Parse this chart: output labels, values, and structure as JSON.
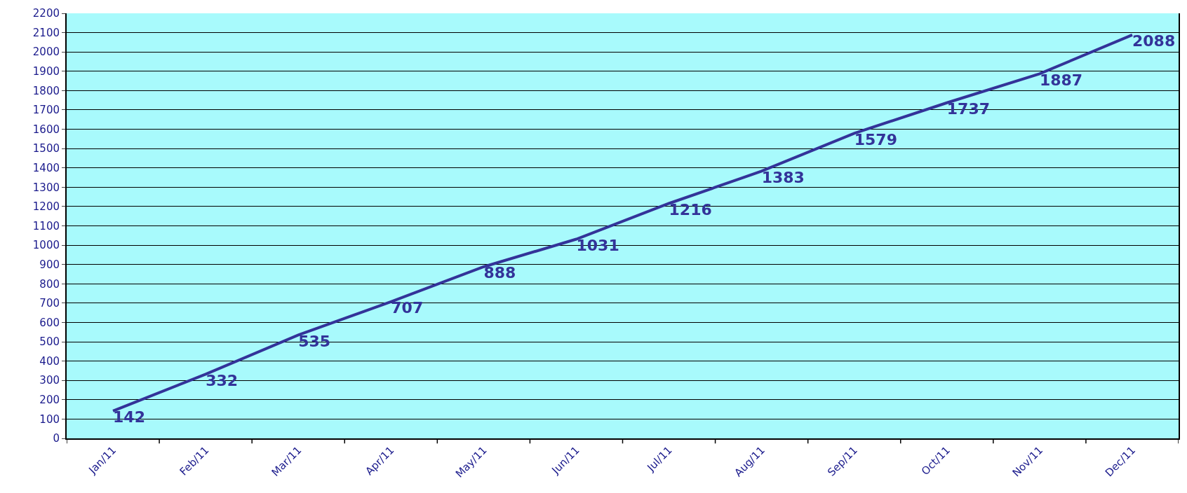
{
  "chart_data": {
    "type": "line",
    "categories": [
      "Jan/11",
      "Feb/11",
      "Mar/11",
      "Apr/11",
      "May/11",
      "Jun/11",
      "Jul/11",
      "Aug/11",
      "Sep/11",
      "Oct/11",
      "Nov/11",
      "Dec/11"
    ],
    "series": [
      {
        "color": "#333399",
        "values": [
          142,
          332,
          535,
          707,
          888,
          1031,
          1216,
          1383,
          1579,
          1737,
          1887,
          2088
        ]
      }
    ],
    "ylim": [
      0,
      2200
    ],
    "yticks": [
      0,
      100,
      200,
      300,
      400,
      500,
      600,
      700,
      800,
      900,
      1000,
      1100,
      1200,
      1300,
      1400,
      1500,
      1600,
      1700,
      1800,
      1900,
      2000,
      2100,
      2200
    ],
    "grid": "y",
    "data_labels": true,
    "marker": "none",
    "line_style": "solid"
  }
}
